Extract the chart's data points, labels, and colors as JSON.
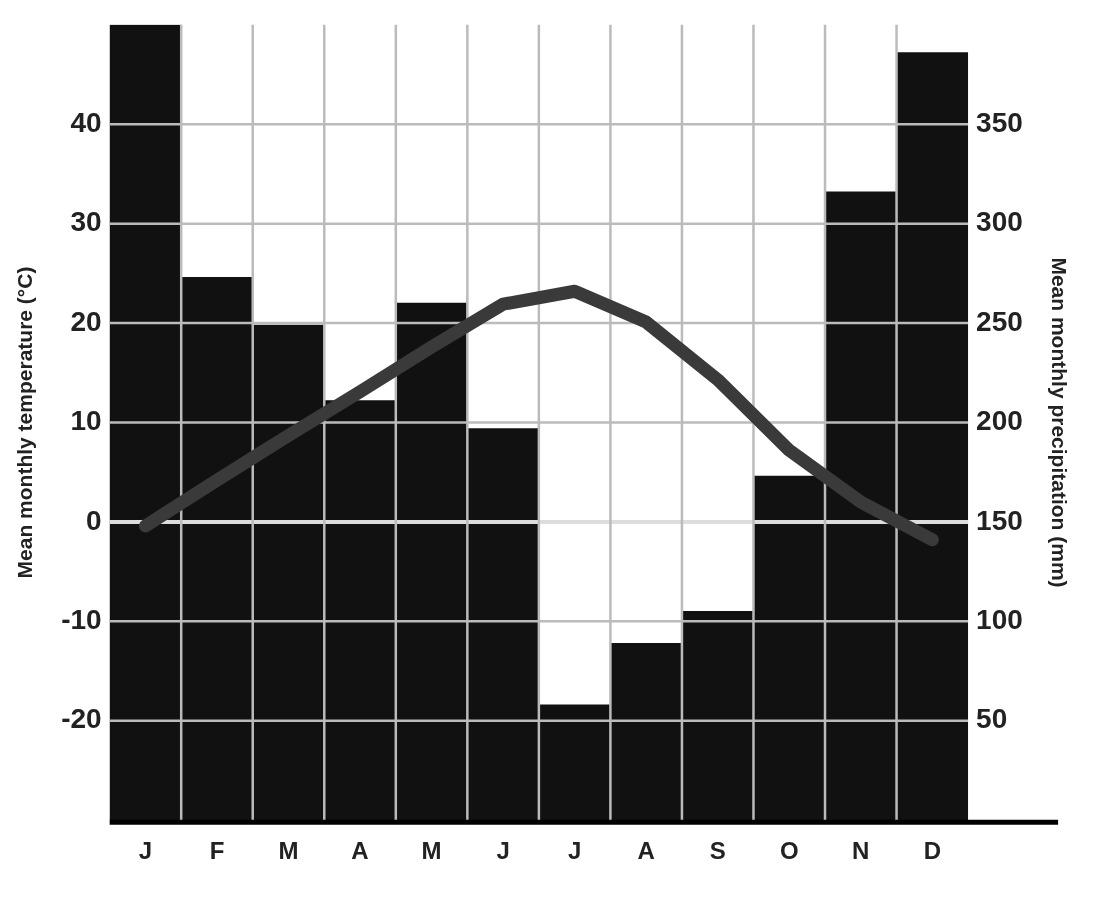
{
  "chart_data": {
    "type": "bar",
    "ylabel": "Mean monthly temperature (°C)",
    "y2label": "Mean monthly precipitation (mm)",
    "categories": [
      "J",
      "F",
      "M",
      "A",
      "M",
      "J",
      "J",
      "A",
      "S",
      "O",
      "N",
      "D"
    ],
    "series": [
      {
        "axis": "y2",
        "color": "#111111",
        "values": [
          400,
          273,
          249,
          211,
          260,
          197,
          58,
          89,
          105,
          173,
          316,
          386
        ]
      },
      {
        "type": "line",
        "axis": "y",
        "color": "#3a3a3a",
        "values": [
          -0.4,
          4.2,
          8.7,
          13.1,
          17.6,
          21.9,
          23.2,
          20.1,
          14.3,
          7.2,
          2.0,
          -1.8
        ]
      }
    ],
    "ylim": [
      -30,
      50
    ],
    "yticks": [
      -20,
      -10,
      0,
      10,
      20,
      30,
      40
    ],
    "y2lim": [
      0,
      400
    ],
    "y2ticks": [
      50,
      100,
      150,
      200,
      250,
      300,
      350
    ],
    "grid": true,
    "marker": "none"
  }
}
